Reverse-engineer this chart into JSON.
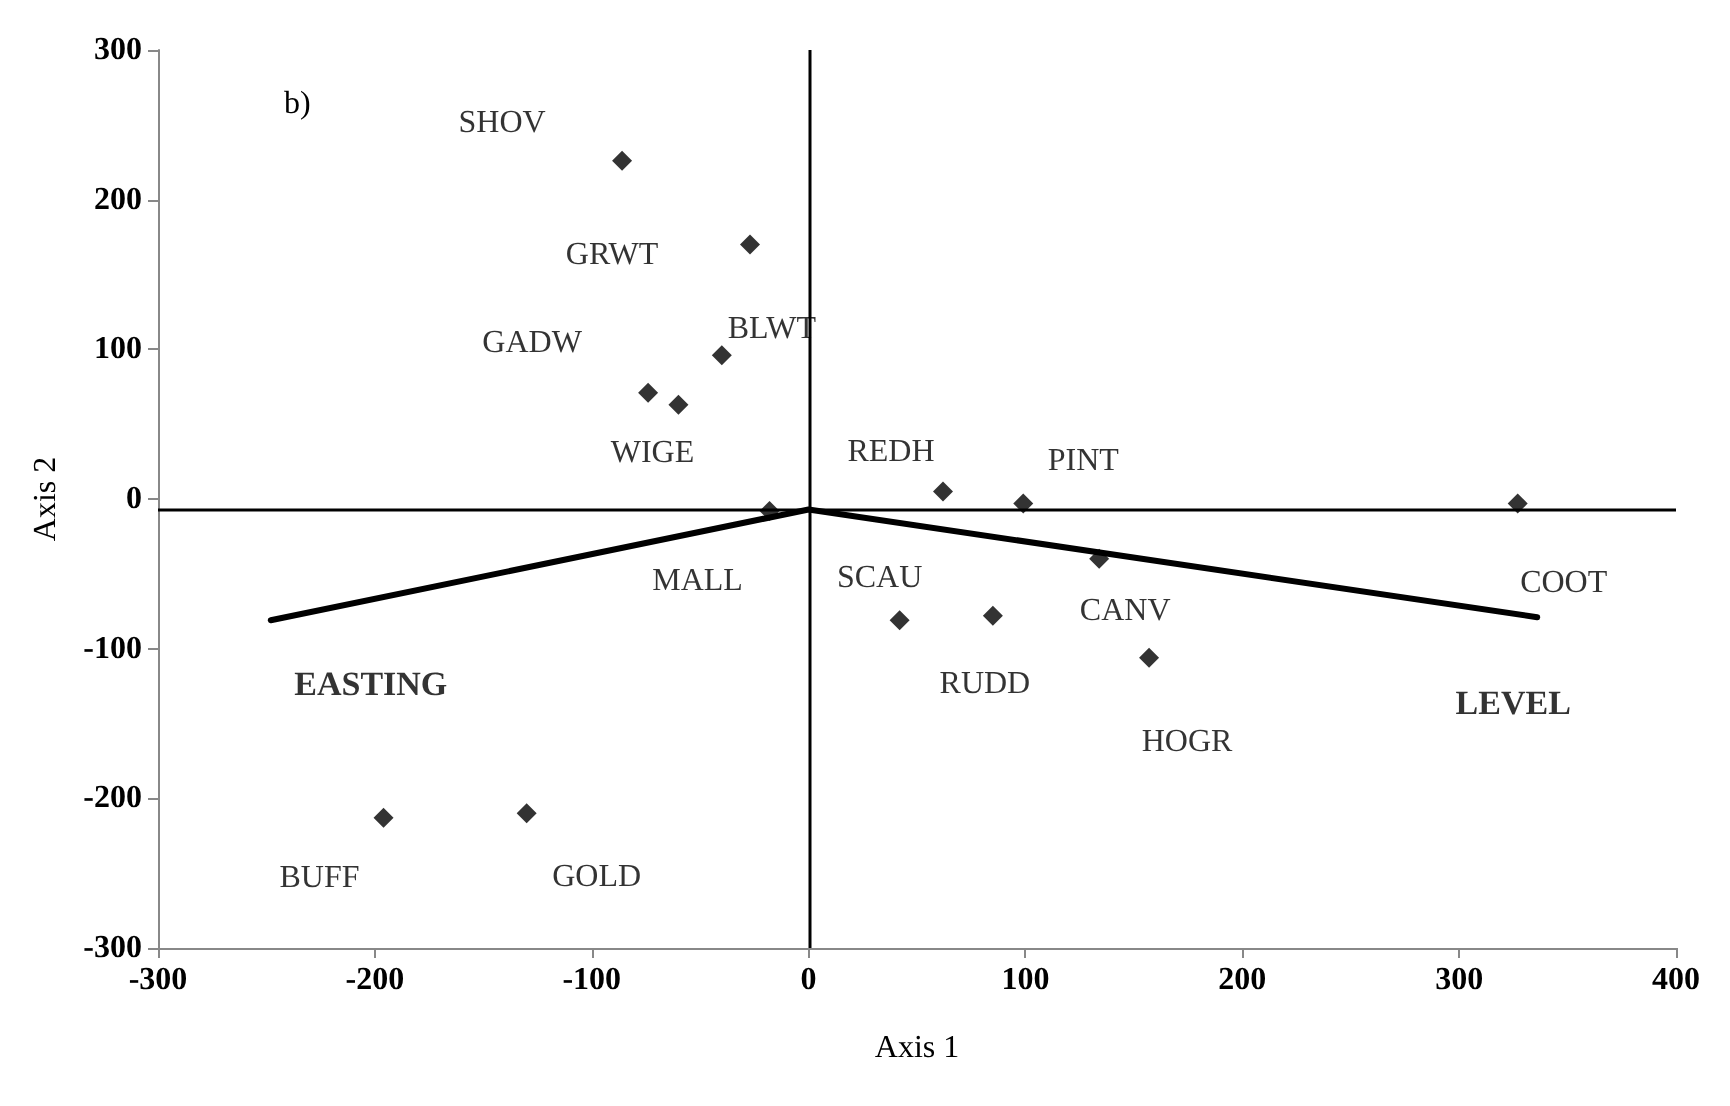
{
  "chart_data": {
    "type": "scatter",
    "xlabel": "Axis 1",
    "ylabel": "Axis 2",
    "xlim": [
      -300,
      400
    ],
    "xticks": [
      -300,
      -200,
      -100,
      0,
      100,
      200,
      300,
      400
    ],
    "ylim": [
      -300,
      300
    ],
    "yticks": [
      -300,
      -200,
      -100,
      0,
      100,
      200,
      300
    ],
    "grid": false,
    "marker": "diamond",
    "series": [
      {
        "color": "#000000",
        "x": [
          -86,
          -27,
          -40,
          -74,
          -60,
          -18,
          62,
          99,
          134,
          42,
          85,
          157,
          327,
          -196,
          -130
        ],
        "values": [
          226,
          170,
          96,
          71,
          63,
          -8,
          5,
          -3,
          -40,
          -81,
          -78,
          -106,
          -3,
          -213,
          -210
        ]
      },
      {
        "type": "line",
        "marker": "none",
        "color": "#000000",
        "x": [
          -248,
          0,
          336
        ],
        "values": [
          -81,
          -7,
          -79
        ]
      }
    ],
    "ref_lines": [
      {
        "axis": "x",
        "value": 0,
        "color": "#000000"
      },
      {
        "axis": "y",
        "value": -7,
        "color": "#000000"
      }
    ],
    "annotations": [
      "b)",
      {
        "text": "SHOV",
        "x": -86,
        "y": 226
      },
      {
        "text": "GRWT",
        "x": -27,
        "y": 170
      },
      {
        "text": "BLWT",
        "x": -40,
        "y": 96
      },
      {
        "text": "GADW",
        "x": -74,
        "y": 71
      },
      {
        "text": "WIGE",
        "x": -60,
        "y": 63
      },
      {
        "text": "MALL",
        "x": -18,
        "y": -8
      },
      {
        "text": "REDH",
        "x": 62,
        "y": 5
      },
      {
        "text": "PINT",
        "x": 99,
        "y": -3
      },
      {
        "text": "CANV",
        "x": 134,
        "y": -40
      },
      {
        "text": "SCAU",
        "x": 42,
        "y": -81
      },
      {
        "text": "RUDD",
        "x": 85,
        "y": -78
      },
      {
        "text": "HOGR",
        "x": 157,
        "y": -106
      },
      {
        "text": "COOT",
        "x": 327,
        "y": -3
      },
      {
        "text": "BUFF",
        "x": -196,
        "y": -213
      },
      {
        "text": "GOLD",
        "x": -130,
        "y": -210
      },
      {
        "text": "EASTING",
        "x": -248,
        "y": -81
      },
      {
        "text": "LEVEL",
        "x": 336,
        "y": -79
      }
    ]
  }
}
